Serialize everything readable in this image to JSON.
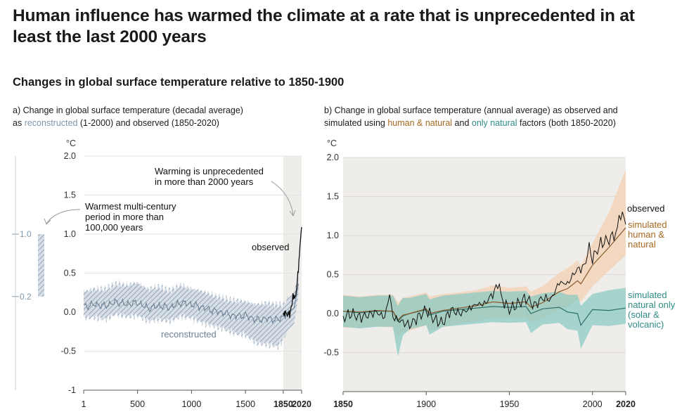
{
  "header": {
    "title": "Human influence has warmed the climate at a rate that is unprecedented in at least the last 2000 years",
    "subtitle": "Changes in global surface temperature relative to 1850-1900"
  },
  "panel_a": {
    "title_line1": "a) Change in global surface temperature (decadal average)",
    "title_as": "as ",
    "title_reconstructed": "reconstructed",
    "title_mid": " (1-2000) and observed (1850-2020)"
  },
  "panel_b": {
    "title_line1": "b) Change in global surface temperature (annual average) as observed and",
    "title_pre": "simulated using ",
    "title_human": "human & natural",
    "title_and": " and ",
    "title_natural": "only natural",
    "title_post": " factors (both 1850-2020)"
  },
  "colors": {
    "observed": "#111111",
    "reconstructed_line": "#6d8296",
    "reconstructed_band": "#b9c6d3",
    "human_natural_line": "#8a5a2b",
    "human_natural_band": "#f2d4b8",
    "natural_line": "#2d6f69",
    "natural_band": "#8cc9c3",
    "shade": "#efedea",
    "text_reconstructed": "#7f96ad",
    "text_human": "#a9681f",
    "text_natural": "#2e8b84"
  },
  "chart_data": [
    {
      "type": "line",
      "id": "panel_a",
      "ylabel": "°C",
      "ylim": [
        -1,
        2
      ],
      "xlim": [
        1,
        2020
      ],
      "y_ticks": [
        "2.0",
        "1.5",
        "1.0",
        "0.5",
        "0.0",
        "-0.5",
        "-1"
      ],
      "x_ticks": [
        "1",
        "500",
        "1000",
        "1500",
        "1850",
        "2020"
      ],
      "shaded_range": [
        1850,
        2020
      ],
      "annotations": {
        "unprecedented_line1": "Warming is unprecedented",
        "unprecedented_line2": "in more than 2000 years",
        "warmest_line1": "Warmest multi-century",
        "warmest_line2": "period in more than",
        "warmest_line3": "100,000 years",
        "observed_label": "observed",
        "reconstructed_label": "reconstructed"
      },
      "side_bar": {
        "low": 0.2,
        "high": 1.0,
        "low_label": "0.2",
        "high_label": "1.0"
      },
      "series": [
        {
          "name": "reconstructed",
          "x": [
            1,
            100,
            200,
            300,
            400,
            500,
            600,
            700,
            800,
            900,
            1000,
            1100,
            1200,
            1300,
            1400,
            1500,
            1600,
            1700,
            1800,
            1850,
            1900,
            1950,
            2000
          ],
          "y": [
            0.07,
            0.1,
            0.08,
            0.13,
            0.1,
            0.12,
            0.05,
            0.08,
            0.06,
            0.12,
            0.1,
            0.06,
            0.02,
            -0.01,
            -0.05,
            -0.04,
            -0.1,
            -0.08,
            -0.1,
            -0.06,
            0.0,
            0.05,
            0.43
          ],
          "lower": [
            -0.08,
            -0.07,
            -0.1,
            -0.03,
            -0.06,
            -0.05,
            -0.12,
            -0.1,
            -0.12,
            -0.06,
            -0.08,
            -0.14,
            -0.18,
            -0.22,
            -0.28,
            -0.3,
            -0.4,
            -0.42,
            -0.45,
            -0.35,
            -0.22,
            -0.15,
            0.3
          ],
          "upper": [
            0.27,
            0.3,
            0.3,
            0.37,
            0.35,
            0.38,
            0.3,
            0.33,
            0.28,
            0.35,
            0.3,
            0.27,
            0.22,
            0.18,
            0.15,
            0.14,
            0.1,
            0.12,
            0.1,
            0.1,
            0.18,
            0.25,
            0.6
          ]
        },
        {
          "name": "observed",
          "x": [
            1850,
            1860,
            1870,
            1880,
            1890,
            1900,
            1910,
            1920,
            1930,
            1940,
            1950,
            1960,
            1970,
            1980,
            1990,
            2000,
            2010,
            2020
          ],
          "y": [
            -0.02,
            -0.03,
            0.01,
            -0.02,
            -0.06,
            0.02,
            -0.05,
            0.04,
            0.1,
            0.22,
            0.18,
            0.2,
            0.25,
            0.4,
            0.55,
            0.75,
            0.95,
            1.09
          ]
        }
      ]
    },
    {
      "type": "line",
      "id": "panel_b",
      "ylabel": "°C",
      "ylim": [
        -1,
        2
      ],
      "xlim": [
        1850,
        2020
      ],
      "y_ticks": [
        "2.0",
        "1.5",
        "1.0",
        "0.5",
        "0.0",
        "-0.5"
      ],
      "x_ticks": [
        "1850",
        "1900",
        "1950",
        "2000",
        "2020"
      ],
      "labels": {
        "observed": "observed",
        "human_line1": "simulated",
        "human_line2": "human &",
        "human_line3": "natural",
        "natural_line1": "simulated",
        "natural_line2": "natural only",
        "natural_line3": "(solar &",
        "natural_line4": "volcanic)"
      },
      "series": [
        {
          "name": "simulated human & natural",
          "x": [
            1850,
            1860,
            1870,
            1880,
            1883,
            1886,
            1890,
            1900,
            1902,
            1910,
            1920,
            1930,
            1940,
            1950,
            1960,
            1963,
            1970,
            1980,
            1985,
            1991,
            1993,
            2000,
            2010,
            2020
          ],
          "y": [
            0.03,
            0.02,
            0.04,
            0.03,
            -0.08,
            -0.02,
            0.0,
            0.06,
            0.0,
            0.04,
            0.07,
            0.1,
            0.15,
            0.13,
            0.15,
            0.08,
            0.14,
            0.28,
            0.32,
            0.42,
            0.38,
            0.62,
            0.85,
            1.1
          ],
          "lower": [
            -0.18,
            -0.18,
            -0.16,
            -0.18,
            -0.3,
            -0.24,
            -0.22,
            -0.15,
            -0.22,
            -0.17,
            -0.13,
            -0.1,
            -0.05,
            -0.07,
            -0.05,
            -0.12,
            -0.05,
            0.05,
            0.08,
            0.18,
            0.15,
            0.35,
            0.55,
            0.75
          ],
          "upper": [
            0.24,
            0.22,
            0.24,
            0.24,
            0.14,
            0.2,
            0.22,
            0.27,
            0.22,
            0.25,
            0.27,
            0.3,
            0.36,
            0.33,
            0.35,
            0.28,
            0.35,
            0.52,
            0.58,
            0.68,
            0.62,
            0.9,
            1.3,
            1.85
          ]
        },
        {
          "name": "simulated natural only (solar & volcanic)",
          "x": [
            1850,
            1860,
            1870,
            1880,
            1883,
            1886,
            1890,
            1900,
            1902,
            1910,
            1920,
            1930,
            1940,
            1950,
            1960,
            1963,
            1970,
            1980,
            1985,
            1991,
            1993,
            2000,
            2010,
            2020
          ],
          "y": [
            0.03,
            0.01,
            0.03,
            0.03,
            -0.1,
            -0.03,
            0.0,
            0.05,
            -0.02,
            0.03,
            0.05,
            0.07,
            0.09,
            0.08,
            0.09,
            0.0,
            0.06,
            0.08,
            0.02,
            0.0,
            -0.15,
            0.05,
            0.04,
            0.07
          ],
          "lower": [
            -0.17,
            -0.19,
            -0.17,
            -0.17,
            -0.55,
            -0.28,
            -0.2,
            -0.15,
            -0.27,
            -0.17,
            -0.15,
            -0.13,
            -0.11,
            -0.12,
            -0.11,
            -0.25,
            -0.14,
            -0.12,
            -0.2,
            -0.22,
            -0.45,
            -0.15,
            -0.16,
            -0.13
          ],
          "upper": [
            0.23,
            0.21,
            0.23,
            0.23,
            0.1,
            0.2,
            0.2,
            0.25,
            0.18,
            0.23,
            0.25,
            0.27,
            0.29,
            0.28,
            0.29,
            0.22,
            0.26,
            0.28,
            0.24,
            0.24,
            0.1,
            0.25,
            0.3,
            0.33
          ]
        },
        {
          "name": "observed",
          "x": [
            1850,
            1855,
            1860,
            1865,
            1870,
            1875,
            1878,
            1880,
            1885,
            1890,
            1895,
            1900,
            1905,
            1910,
            1915,
            1920,
            1925,
            1930,
            1935,
            1940,
            1944,
            1945,
            1950,
            1955,
            1960,
            1965,
            1970,
            1975,
            1980,
            1985,
            1990,
            1995,
            1998,
            2000,
            2005,
            2010,
            2015,
            2016,
            2020
          ],
          "y": [
            -0.05,
            0.0,
            -0.05,
            -0.02,
            0.02,
            -0.05,
            0.25,
            -0.05,
            -0.1,
            -0.15,
            -0.05,
            0.05,
            -0.08,
            -0.12,
            0.05,
            0.0,
            0.05,
            0.12,
            0.12,
            0.25,
            0.4,
            0.2,
            0.05,
            0.12,
            0.2,
            0.1,
            0.2,
            0.18,
            0.4,
            0.38,
            0.55,
            0.6,
            0.85,
            0.7,
            0.9,
            0.95,
            1.05,
            1.28,
            1.2
          ]
        }
      ]
    }
  ]
}
